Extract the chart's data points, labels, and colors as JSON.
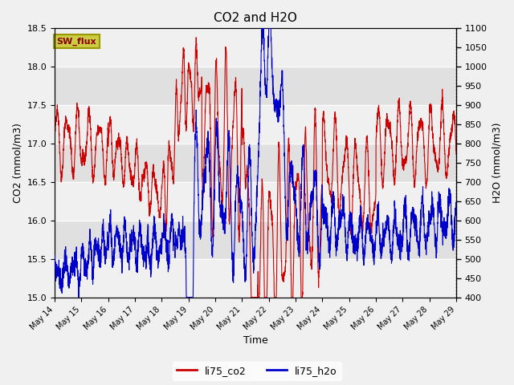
{
  "title": "CO2 and H2O",
  "xlabel": "Time",
  "ylabel_left": "CO2 (mmol/m3)",
  "ylabel_right": "H2O (mmol/m3)",
  "xlim_days": [
    14,
    29
  ],
  "ylim_left": [
    15.0,
    18.5
  ],
  "ylim_right": [
    400,
    1100
  ],
  "yticks_left": [
    15.0,
    15.5,
    16.0,
    16.5,
    17.0,
    17.5,
    18.0,
    18.5
  ],
  "yticks_right": [
    400,
    450,
    500,
    550,
    600,
    650,
    700,
    750,
    800,
    850,
    900,
    950,
    1000,
    1050,
    1100
  ],
  "xtick_labels": [
    "May 14",
    "May 15",
    "May 16",
    "May 17",
    "May 18",
    "May 19",
    "May 20",
    "May 21",
    "May 22",
    "May 23",
    "May 24",
    "May 25",
    "May 26",
    "May 27",
    "May 28",
    "May 29"
  ],
  "color_co2": "#cc0000",
  "color_h2o": "#0000cc",
  "line_width": 0.8,
  "legend_labels": [
    "li75_co2",
    "li75_h2o"
  ],
  "annotation_text": "SW_flux",
  "annotation_bg": "#cccc44",
  "annotation_edge": "#999900",
  "band_ranges": [
    [
      17.5,
      18.0
    ],
    [
      16.5,
      17.0
    ],
    [
      15.5,
      16.0
    ]
  ],
  "band_color": "#e0e0e0",
  "background_color": "#f0f0f0",
  "fig_width": 6.4,
  "fig_height": 4.8,
  "dpi": 100
}
